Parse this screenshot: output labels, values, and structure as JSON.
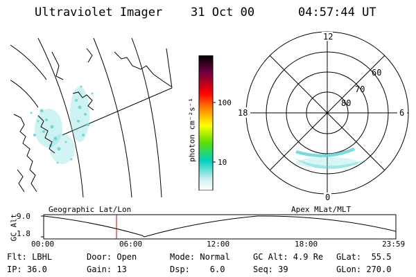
{
  "header": {
    "title": "Ultraviolet Imager",
    "date": "31 Oct 00",
    "time": "04:57:44 UT"
  },
  "colorbar": {
    "unit_label": "photon cm⁻²s⁻¹",
    "ticks": [
      "100",
      "10"
    ]
  },
  "polar_plot": {
    "mlt_labels": {
      "top": "12",
      "left": "18",
      "right": "6",
      "bottom": "0"
    },
    "lat_labels": [
      "60",
      "70",
      "80"
    ]
  },
  "altitude_plot": {
    "y_label": "GC Alt",
    "y_ticks": [
      "9.0",
      "1.8"
    ],
    "left_title": "Geographic Lat/Lon",
    "right_title": "Apex MLat/MLT",
    "x_ticks": [
      "00:00",
      "06:00",
      "12:00",
      "18:00",
      "23:59"
    ],
    "current_time_hours": 4.96
  },
  "info": {
    "flt": "Flt: LBHL",
    "ip": "IP: 36.0",
    "door": "Door: Open",
    "gain": "Gain: 13",
    "mode": "Mode: Normal",
    "dsp": "Dsp:    6.0",
    "gc_alt": "GC Alt: 4.9 Re",
    "seq": "Seq: 39",
    "glat": "GLat:  55.5",
    "glon": "GLon: 270.0"
  },
  "colors": {
    "aurora": "#5fd6d6",
    "time_marker": "#d00000"
  }
}
